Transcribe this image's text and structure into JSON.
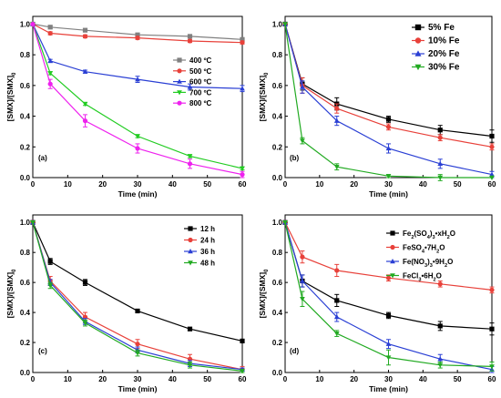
{
  "chart_data": [
    {
      "panel": "(a)",
      "type": "line",
      "xlabel": "Time (min)",
      "ylabel": "[SMX]/[SMX]₀",
      "xlim": [
        0,
        60
      ],
      "ylim": [
        0,
        1.05
      ],
      "xticks": [
        0,
        10,
        20,
        30,
        40,
        50,
        60
      ],
      "yticks": [
        0.0,
        0.2,
        0.4,
        0.6,
        0.8,
        1.0
      ],
      "legend_position": "middle-right",
      "x": [
        0,
        5,
        15,
        30,
        45,
        60
      ],
      "series": [
        {
          "name": "400 ºC",
          "color": "#808080",
          "marker": "square",
          "values": [
            1.0,
            0.98,
            0.96,
            0.93,
            0.92,
            0.9
          ],
          "err": [
            0,
            0.01,
            0.01,
            0.01,
            0.01,
            0.01
          ]
        },
        {
          "name": "500 ºC",
          "color": "#e8413a",
          "marker": "circle",
          "values": [
            1.0,
            0.94,
            0.92,
            0.91,
            0.89,
            0.88
          ],
          "err": [
            0,
            0.01,
            0.01,
            0.01,
            0.01,
            0.01
          ]
        },
        {
          "name": "600 ºC",
          "color": "#2a3fd4",
          "marker": "triangle-up",
          "values": [
            1.0,
            0.76,
            0.69,
            0.64,
            0.59,
            0.58
          ],
          "err": [
            0,
            0.01,
            0.01,
            0.02,
            0.02,
            0.02
          ]
        },
        {
          "name": "700 ºC",
          "color": "#22cc22",
          "marker": "triangle-down",
          "values": [
            1.0,
            0.68,
            0.48,
            0.27,
            0.14,
            0.06
          ],
          "err": [
            0,
            0.01,
            0.01,
            0.01,
            0.01,
            0.01
          ]
        },
        {
          "name": "800 ºC",
          "color": "#ee22ee",
          "marker": "circle",
          "values": [
            1.0,
            0.61,
            0.37,
            0.19,
            0.09,
            0.02
          ],
          "err": [
            0,
            0.03,
            0.04,
            0.03,
            0.03,
            0.02
          ]
        }
      ]
    },
    {
      "panel": "(b)",
      "type": "line",
      "xlabel": "Time (min)",
      "ylabel": "[SMX]/[SMX]₀",
      "xlim": [
        0,
        60
      ],
      "ylim": [
        0,
        1.05
      ],
      "xticks": [
        0,
        10,
        20,
        30,
        40,
        50,
        60
      ],
      "yticks": [
        0.0,
        0.2,
        0.4,
        0.6,
        0.8,
        1.0
      ],
      "legend_position": "top-right",
      "x": [
        0,
        5,
        15,
        30,
        45,
        60
      ],
      "series": [
        {
          "name": "5% Fe",
          "color": "#000000",
          "marker": "square",
          "values": [
            1.0,
            0.61,
            0.48,
            0.38,
            0.31,
            0.27
          ],
          "err": [
            0,
            0.04,
            0.04,
            0.02,
            0.03,
            0.04
          ]
        },
        {
          "name": "10% Fe",
          "color": "#e8413a",
          "marker": "circle",
          "values": [
            1.0,
            0.6,
            0.45,
            0.33,
            0.26,
            0.2
          ],
          "err": [
            0,
            0.05,
            0.03,
            0.02,
            0.02,
            0.02
          ]
        },
        {
          "name": "20% Fe",
          "color": "#2a3fd4",
          "marker": "triangle-up",
          "values": [
            1.0,
            0.59,
            0.37,
            0.19,
            0.09,
            0.02
          ],
          "err": [
            0,
            0.04,
            0.03,
            0.03,
            0.03,
            0.02
          ]
        },
        {
          "name": "30% Fe",
          "color": "#22aa22",
          "marker": "triangle-down",
          "values": [
            1.0,
            0.24,
            0.07,
            0.01,
            0.0,
            0.0
          ],
          "err": [
            0,
            0.02,
            0.02,
            0.01,
            0.02,
            0.0
          ]
        }
      ]
    },
    {
      "panel": "(c)",
      "type": "line",
      "xlabel": "Time (min)",
      "ylabel": "[SMX]/[SMX]₀",
      "xlim": [
        0,
        60
      ],
      "ylim": [
        0,
        1.05
      ],
      "xticks": [
        0,
        10,
        20,
        30,
        40,
        50,
        60
      ],
      "yticks": [
        0.0,
        0.2,
        0.4,
        0.6,
        0.8,
        1.0
      ],
      "legend_position": "top-right",
      "x": [
        0,
        5,
        15,
        30,
        45,
        60
      ],
      "series": [
        {
          "name": "12 h",
          "color": "#000000",
          "marker": "square",
          "values": [
            1.0,
            0.74,
            0.6,
            0.41,
            0.29,
            0.21
          ],
          "err": [
            0,
            0.02,
            0.02,
            0.01,
            0.01,
            0.01
          ]
        },
        {
          "name": "24 h",
          "color": "#e8413a",
          "marker": "circle",
          "values": [
            1.0,
            0.61,
            0.37,
            0.19,
            0.09,
            0.02
          ],
          "err": [
            0,
            0.03,
            0.03,
            0.03,
            0.03,
            0.02
          ]
        },
        {
          "name": "36 h",
          "color": "#2a3fd4",
          "marker": "triangle-up",
          "values": [
            1.0,
            0.6,
            0.34,
            0.15,
            0.06,
            0.02
          ],
          "err": [
            0,
            0.02,
            0.02,
            0.02,
            0.02,
            0.01
          ]
        },
        {
          "name": "48 h",
          "color": "#22aa22",
          "marker": "triangle-down",
          "values": [
            1.0,
            0.58,
            0.33,
            0.13,
            0.05,
            0.01
          ],
          "err": [
            0,
            0.02,
            0.02,
            0.02,
            0.02,
            0.01
          ]
        }
      ]
    },
    {
      "panel": "(d)",
      "type": "line",
      "xlabel": "Time (min)",
      "ylabel": "[SMX]/[SMX]₀",
      "xlim": [
        0,
        60
      ],
      "ylim": [
        0,
        1.05
      ],
      "xticks": [
        0,
        10,
        20,
        30,
        40,
        50,
        60
      ],
      "yticks": [
        0.0,
        0.2,
        0.4,
        0.6,
        0.8,
        1.0
      ],
      "legend_position": "top-right",
      "x": [
        0,
        5,
        15,
        30,
        45,
        60
      ],
      "series": [
        {
          "name": "Fe₂(SO₄)₃•xH₂O",
          "color": "#000000",
          "marker": "square",
          "values": [
            1.0,
            0.61,
            0.48,
            0.38,
            0.31,
            0.29
          ],
          "err": [
            0,
            0.04,
            0.04,
            0.02,
            0.03,
            0.04
          ]
        },
        {
          "name": "FeSO₄•7H₂O",
          "color": "#e8413a",
          "marker": "circle",
          "values": [
            1.0,
            0.77,
            0.68,
            0.63,
            0.59,
            0.55
          ],
          "err": [
            0,
            0.04,
            0.04,
            0.02,
            0.02,
            0.02
          ]
        },
        {
          "name": "Fe(NO₃)₃•9H₂O",
          "color": "#2a3fd4",
          "marker": "triangle-up",
          "values": [
            1.0,
            0.61,
            0.37,
            0.19,
            0.09,
            0.02
          ],
          "err": [
            0,
            0.04,
            0.03,
            0.03,
            0.03,
            0.02
          ]
        },
        {
          "name": "FeCl₃•6H₂O",
          "color": "#22aa22",
          "marker": "triangle-down",
          "values": [
            1.0,
            0.49,
            0.26,
            0.1,
            0.05,
            0.04
          ],
          "err": [
            0,
            0.05,
            0.02,
            0.05,
            0.02,
            0.03
          ]
        }
      ]
    }
  ]
}
